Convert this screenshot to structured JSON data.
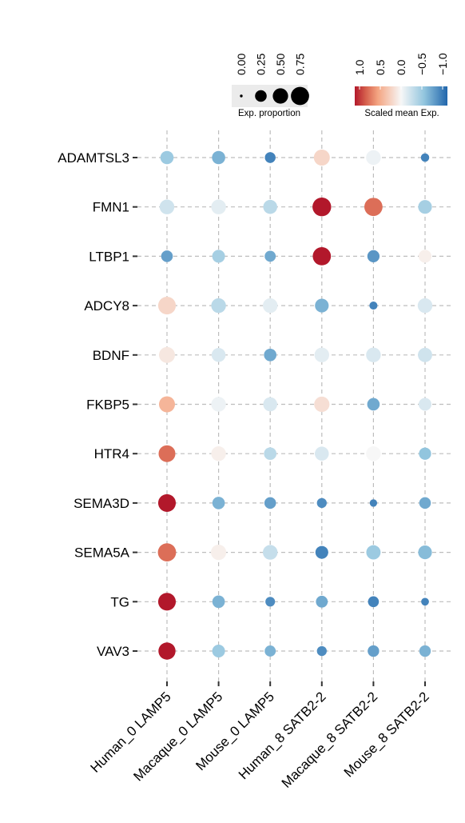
{
  "chart_data": {
    "type": "dot",
    "genes": [
      "ADAMTSL3",
      "FMN1",
      "LTBP1",
      "ADCY8",
      "BDNF",
      "FKBP5",
      "HTR4",
      "SEMA3D",
      "SEMA5A",
      "TG",
      "VAV3"
    ],
    "categories": [
      "Human_0 LAMP5",
      "Macaque_0 LAMP5",
      "Mouse_0 LAMP5",
      "Human_8 SATB2‑2",
      "Macaque_8 SATB2‑2",
      "Mouse_8 SATB2‑2"
    ],
    "exp_proportion": [
      [
        0.35,
        0.35,
        0.2,
        0.55,
        0.45,
        0.1
      ],
      [
        0.45,
        0.45,
        0.4,
        0.8,
        0.75,
        0.38
      ],
      [
        0.25,
        0.32,
        0.22,
        0.75,
        0.28,
        0.32
      ],
      [
        0.7,
        0.45,
        0.45,
        0.38,
        0.09,
        0.45
      ],
      [
        0.55,
        0.4,
        0.3,
        0.45,
        0.45,
        0.42
      ],
      [
        0.55,
        0.45,
        0.4,
        0.5,
        0.3,
        0.32
      ],
      [
        0.62,
        0.45,
        0.3,
        0.4,
        0.45,
        0.28
      ],
      [
        0.7,
        0.3,
        0.25,
        0.16,
        0.07,
        0.25
      ],
      [
        0.75,
        0.5,
        0.45,
        0.32,
        0.42,
        0.38
      ],
      [
        0.7,
        0.3,
        0.15,
        0.26,
        0.21,
        0.08
      ],
      [
        0.65,
        0.32,
        0.22,
        0.16,
        0.24,
        0.24
      ]
    ],
    "scaled_mean_exp": [
      [
        -0.45,
        -0.6,
        -0.85,
        0.2,
        -0.05,
        -0.85
      ],
      [
        -0.2,
        -0.1,
        -0.3,
        1.0,
        0.7,
        -0.4
      ],
      [
        -0.7,
        -0.4,
        -0.65,
        1.0,
        -0.75,
        0.05
      ],
      [
        0.2,
        -0.3,
        -0.1,
        -0.6,
        -0.85,
        -0.15
      ],
      [
        0.1,
        -0.15,
        -0.65,
        -0.1,
        -0.15,
        -0.2
      ],
      [
        0.4,
        -0.05,
        -0.15,
        0.15,
        -0.65,
        -0.15
      ],
      [
        0.7,
        0.05,
        -0.3,
        -0.15,
        0.0,
        -0.5
      ],
      [
        1.0,
        -0.6,
        -0.7,
        -0.8,
        -0.85,
        -0.65
      ],
      [
        0.7,
        0.05,
        -0.25,
        -0.85,
        -0.45,
        -0.55
      ],
      [
        1.0,
        -0.6,
        -0.8,
        -0.65,
        -0.85,
        -0.85
      ],
      [
        1.0,
        -0.45,
        -0.6,
        -0.8,
        -0.7,
        -0.6
      ]
    ],
    "size_legend": {
      "title": "Exp. proportion",
      "breaks": [
        0.0,
        0.25,
        0.5,
        0.75
      ],
      "labels": [
        "0.00",
        "0.25",
        "0.50",
        "0.75"
      ]
    },
    "color_legend": {
      "title": "Scaled mean Exp.",
      "range": [
        1.0,
        -1.0
      ],
      "breaks": [
        1.0,
        0.5,
        0.0,
        -0.5,
        -1.0
      ],
      "labels": [
        "1.0",
        "0.5",
        "0.0",
        "−0.5",
        "−1.0"
      ],
      "low_color": "#2166ac",
      "mid_color": "#f7f7f7",
      "high_color": "#b2182b"
    },
    "grid": true,
    "legend_position": "top"
  }
}
